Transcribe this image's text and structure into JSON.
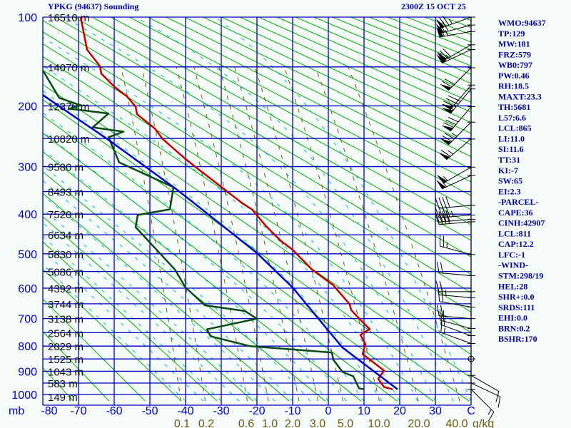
{
  "header": {
    "title": "YPKG (94637) Sounding",
    "datetime": "2300Z 15 OCT 25"
  },
  "indices": [
    "WMO:94637",
    "TP:129",
    "MW:181",
    "FRZ:579",
    "WB0:797",
    "PW:0.46",
    "RH:18.5",
    "MAXT:23.3",
    "TH:5681",
    "L57:6.6",
    "LCL:865",
    "LI:11.0",
    "SI:11.6",
    "TT:31",
    "KI:-7",
    "SW:65",
    "EI:2.3",
    "-PARCEL-",
    "CAPE:36",
    "CINH:42907",
    "LCL:811",
    "CAP:12.2",
    "LFC:-1",
    "-WIND-",
    "STM:298/19",
    "HEL:28",
    "SHR+:0.0",
    "SRDS:111",
    "EHI:0.0",
    "BRN:0.2",
    "BSHR:170"
  ],
  "chart_data": {
    "type": "line",
    "title": "YPKG (94637) Sounding",
    "pressure_axis": {
      "unit": "mb",
      "range": [
        100,
        1000
      ],
      "labels": [
        "100",
        "200",
        "300",
        "400",
        "500",
        "600",
        "700",
        "800",
        "900",
        "1000"
      ],
      "label_values": [
        100,
        200,
        300,
        400,
        500,
        600,
        700,
        800,
        900,
        1000
      ]
    },
    "height_labels": [
      {
        "p": 100,
        "label": "16510 m"
      },
      {
        "p": 150,
        "label": "14070 m"
      },
      {
        "p": 200,
        "label": "12370 m"
      },
      {
        "p": 250,
        "label": "10820 m"
      },
      {
        "p": 300,
        "label": "9580 m"
      },
      {
        "p": 350,
        "label": "8493 m"
      },
      {
        "p": 400,
        "label": "7520 m"
      },
      {
        "p": 450,
        "label": "6634 m"
      },
      {
        "p": 500,
        "label": "5830 m"
      },
      {
        "p": 550,
        "label": "5086 m"
      },
      {
        "p": 600,
        "label": "4392 m"
      },
      {
        "p": 650,
        "label": "3744 m"
      },
      {
        "p": 700,
        "label": "3138 m"
      },
      {
        "p": 750,
        "label": "2564 m"
      },
      {
        "p": 800,
        "label": "2029 m"
      },
      {
        "p": 850,
        "label": "1525 m"
      },
      {
        "p": 900,
        "label": "1043 m"
      },
      {
        "p": 950,
        "label": "583 m"
      },
      {
        "p": 1000,
        "label": "149 m"
      }
    ],
    "temperature_axis": {
      "unit_label": "C",
      "range": [
        -80,
        40
      ],
      "ticks": [
        -80,
        -70,
        -60,
        -50,
        -40,
        -30,
        -20,
        -10,
        0,
        10,
        20,
        30
      ],
      "tick_labels": [
        "-80",
        "-70",
        "-60",
        "-50",
        "-40",
        "-30",
        "-20",
        "-10",
        "0",
        "10",
        "20",
        "30"
      ],
      "mb_label": "mb"
    },
    "mixing_ratio": {
      "values": [
        0.1,
        0.2,
        0.6,
        1.0,
        2.0,
        3.0,
        5.0,
        10.0,
        20.0,
        40.0
      ],
      "labels": [
        "0.1",
        "0.2",
        "0.6",
        "1.0",
        "2.0",
        "3.0",
        "5.0",
        "10.0",
        "20.0",
        "40.0"
      ],
      "unit": "g/kg"
    },
    "series": [
      {
        "name": "temperature",
        "color": "#c00000",
        "points": [
          [
            100,
            -69.4
          ],
          [
            131,
            -67.6
          ],
          [
            149,
            -64
          ],
          [
            158,
            -63.6
          ],
          [
            174,
            -60
          ],
          [
            187,
            -56.4
          ],
          [
            201,
            -54
          ],
          [
            212,
            -53.6
          ],
          [
            234,
            -48.6
          ],
          [
            251,
            -46.4
          ],
          [
            286,
            -40
          ],
          [
            304,
            -36.6
          ],
          [
            340,
            -30
          ],
          [
            376,
            -24
          ],
          [
            389,
            -21.4
          ],
          [
            429,
            -17.4
          ],
          [
            465,
            -13.4
          ],
          [
            489,
            -10
          ],
          [
            544,
            -4.6
          ],
          [
            591,
            1.4
          ],
          [
            652,
            6
          ],
          [
            671,
            6.4
          ],
          [
            712,
            9.6
          ],
          [
            737,
            11.6
          ],
          [
            758,
            9
          ],
          [
            792,
            10.4
          ],
          [
            831,
            9.6
          ],
          [
            897,
            15.6
          ],
          [
            932,
            14
          ],
          [
            967,
            15.6
          ],
          [
            977,
            18
          ]
        ]
      },
      {
        "name": "dewpoint",
        "color": "#0a4a14",
        "points": [
          [
            154,
            -80
          ],
          [
            189,
            -75.4
          ],
          [
            199,
            -69.4
          ],
          [
            204,
            -72.6
          ],
          [
            211,
            -61.6
          ],
          [
            232,
            -66
          ],
          [
            239,
            -57.4
          ],
          [
            248,
            -61.6
          ],
          [
            292,
            -58.6
          ],
          [
            341,
            -43.4
          ],
          [
            389,
            -44.4
          ],
          [
            402,
            -53.4
          ],
          [
            431,
            -54
          ],
          [
            544,
            -43
          ],
          [
            598,
            -40
          ],
          [
            655,
            -34.6
          ],
          [
            674,
            -23.4
          ],
          [
            700,
            -20
          ],
          [
            738,
            -34
          ],
          [
            763,
            -33
          ],
          [
            800,
            -22
          ],
          [
            825,
            1
          ],
          [
            853,
            1.4
          ],
          [
            903,
            4
          ],
          [
            921,
            7
          ],
          [
            973,
            8.6
          ],
          [
            977,
            10
          ]
        ]
      },
      {
        "name": "parcel",
        "color": "#0000c0",
        "points": [
          [
            185,
            -80
          ],
          [
            255,
            -61
          ],
          [
            345,
            -42.6
          ],
          [
            369,
            -38.6
          ],
          [
            429,
            -29.4
          ],
          [
            498,
            -20
          ],
          [
            598,
            -10
          ],
          [
            733,
            -0.6
          ],
          [
            806,
            4
          ],
          [
            977,
            19.4
          ]
        ]
      }
    ],
    "winds": [
      [
        100,
        250,
        75
      ],
      [
        107,
        255,
        70
      ],
      [
        113,
        260,
        65
      ],
      [
        126,
        240,
        70
      ],
      [
        131,
        245,
        65
      ],
      [
        151,
        225,
        70
      ],
      [
        172,
        220,
        80
      ],
      [
        177,
        220,
        85
      ],
      [
        201,
        220,
        80
      ],
      [
        224,
        225,
        75
      ],
      [
        251,
        230,
        65
      ],
      [
        301,
        240,
        55
      ],
      [
        317,
        245,
        55
      ],
      [
        380,
        265,
        40
      ],
      [
        402,
        265,
        45
      ],
      [
        412,
        265,
        40
      ],
      [
        418,
        265,
        40
      ],
      [
        502,
        285,
        25
      ],
      [
        562,
        275,
        20
      ],
      [
        611,
        270,
        20
      ],
      [
        630,
        275,
        25
      ],
      [
        661,
        280,
        20
      ],
      [
        700,
        275,
        20
      ],
      [
        735,
        285,
        20
      ],
      [
        761,
        290,
        20
      ],
      [
        790,
        290,
        15
      ],
      [
        850,
        0,
        0
      ],
      [
        917,
        120,
        10
      ],
      [
        950,
        115,
        10
      ],
      [
        977,
        135,
        15
      ]
    ]
  }
}
